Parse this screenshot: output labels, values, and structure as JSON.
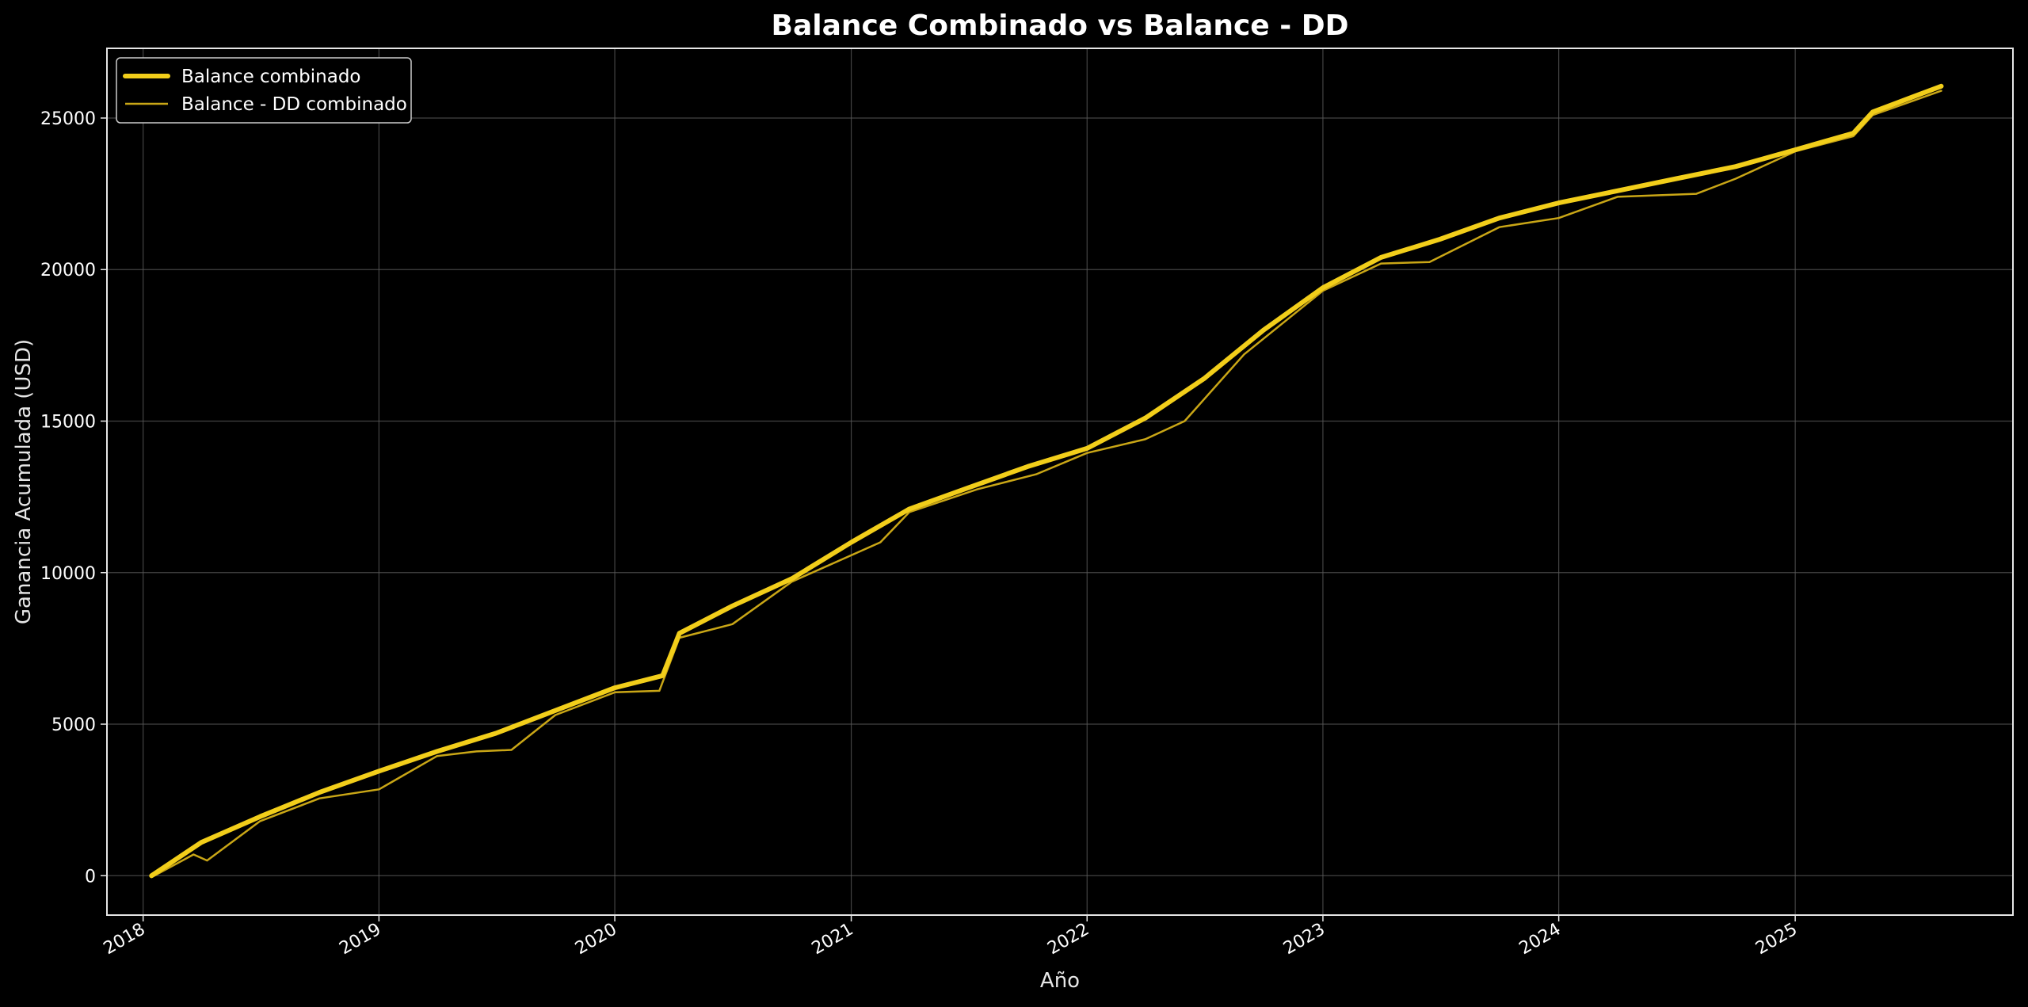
{
  "chart_data": {
    "type": "line",
    "title": "Balance Combinado vs Balance - DD",
    "xlabel": "Año",
    "ylabel": "Ganancia Acumulada (USD)",
    "xlim": [
      "2017-11-06",
      "2025-12-04"
    ],
    "ylim": [
      -1300,
      27300
    ],
    "x_ticks": [
      "2018",
      "2019",
      "2020",
      "2021",
      "2022",
      "2023",
      "2024",
      "2025"
    ],
    "y_ticks": [
      0,
      5000,
      10000,
      15000,
      20000,
      25000
    ],
    "y_tick_labels": [
      "0",
      "5000",
      "10000",
      "15000",
      "20000",
      "25000"
    ],
    "grid": true,
    "legend_position": "top-left",
    "series": [
      {
        "name": "Balance combinado",
        "color": "#f2ce1a",
        "points": [
          {
            "x": "2018-01-14",
            "y": 0
          },
          {
            "x": "2018-04-01",
            "y": 1100
          },
          {
            "x": "2018-07-01",
            "y": 1950
          },
          {
            "x": "2018-10-01",
            "y": 2750
          },
          {
            "x": "2019-01-01",
            "y": 3450
          },
          {
            "x": "2019-04-01",
            "y": 4100
          },
          {
            "x": "2019-07-01",
            "y": 4700
          },
          {
            "x": "2019-10-01",
            "y": 5450
          },
          {
            "x": "2020-01-01",
            "y": 6200
          },
          {
            "x": "2020-03-15",
            "y": 6600
          },
          {
            "x": "2020-04-10",
            "y": 8000
          },
          {
            "x": "2020-07-01",
            "y": 8900
          },
          {
            "x": "2020-10-01",
            "y": 9800
          },
          {
            "x": "2021-01-01",
            "y": 11000
          },
          {
            "x": "2021-04-01",
            "y": 12100
          },
          {
            "x": "2021-07-01",
            "y": 12800
          },
          {
            "x": "2021-10-01",
            "y": 13500
          },
          {
            "x": "2022-01-01",
            "y": 14100
          },
          {
            "x": "2022-04-01",
            "y": 15100
          },
          {
            "x": "2022-07-01",
            "y": 16400
          },
          {
            "x": "2022-10-01",
            "y": 18000
          },
          {
            "x": "2023-01-01",
            "y": 19400
          },
          {
            "x": "2023-04-01",
            "y": 20400
          },
          {
            "x": "2023-07-01",
            "y": 21000
          },
          {
            "x": "2023-10-01",
            "y": 21700
          },
          {
            "x": "2024-01-01",
            "y": 22200
          },
          {
            "x": "2024-04-01",
            "y": 22600
          },
          {
            "x": "2024-07-01",
            "y": 23000
          },
          {
            "x": "2024-10-01",
            "y": 23400
          },
          {
            "x": "2025-01-01",
            "y": 23950
          },
          {
            "x": "2025-04-01",
            "y": 24500
          },
          {
            "x": "2025-05-01",
            "y": 25200
          },
          {
            "x": "2025-08-15",
            "y": 26050
          }
        ]
      },
      {
        "name": "Balance - DD combinado",
        "color": "#c9a616",
        "points": [
          {
            "x": "2018-01-14",
            "y": -50
          },
          {
            "x": "2018-03-20",
            "y": 700
          },
          {
            "x": "2018-04-10",
            "y": 500
          },
          {
            "x": "2018-07-01",
            "y": 1800
          },
          {
            "x": "2018-10-01",
            "y": 2550
          },
          {
            "x": "2019-01-01",
            "y": 2850
          },
          {
            "x": "2019-04-01",
            "y": 3950
          },
          {
            "x": "2019-06-01",
            "y": 4100
          },
          {
            "x": "2019-07-25",
            "y": 4150
          },
          {
            "x": "2019-10-01",
            "y": 5300
          },
          {
            "x": "2020-01-01",
            "y": 6050
          },
          {
            "x": "2020-03-10",
            "y": 6100
          },
          {
            "x": "2020-04-10",
            "y": 7850
          },
          {
            "x": "2020-07-01",
            "y": 8300
          },
          {
            "x": "2020-10-01",
            "y": 9700
          },
          {
            "x": "2021-02-15",
            "y": 11000
          },
          {
            "x": "2021-04-01",
            "y": 12000
          },
          {
            "x": "2021-07-15",
            "y": 12750
          },
          {
            "x": "2021-10-15",
            "y": 13250
          },
          {
            "x": "2022-01-01",
            "y": 13950
          },
          {
            "x": "2022-04-01",
            "y": 14400
          },
          {
            "x": "2022-06-01",
            "y": 15000
          },
          {
            "x": "2022-09-01",
            "y": 17200
          },
          {
            "x": "2023-01-01",
            "y": 19300
          },
          {
            "x": "2023-04-01",
            "y": 20200
          },
          {
            "x": "2023-06-15",
            "y": 20250
          },
          {
            "x": "2023-10-01",
            "y": 21400
          },
          {
            "x": "2024-01-01",
            "y": 21700
          },
          {
            "x": "2024-04-01",
            "y": 22400
          },
          {
            "x": "2024-08-01",
            "y": 22500
          },
          {
            "x": "2024-10-01",
            "y": 23000
          },
          {
            "x": "2025-01-01",
            "y": 23900
          },
          {
            "x": "2025-04-01",
            "y": 24400
          },
          {
            "x": "2025-05-01",
            "y": 25100
          },
          {
            "x": "2025-08-15",
            "y": 25900
          }
        ]
      }
    ]
  }
}
